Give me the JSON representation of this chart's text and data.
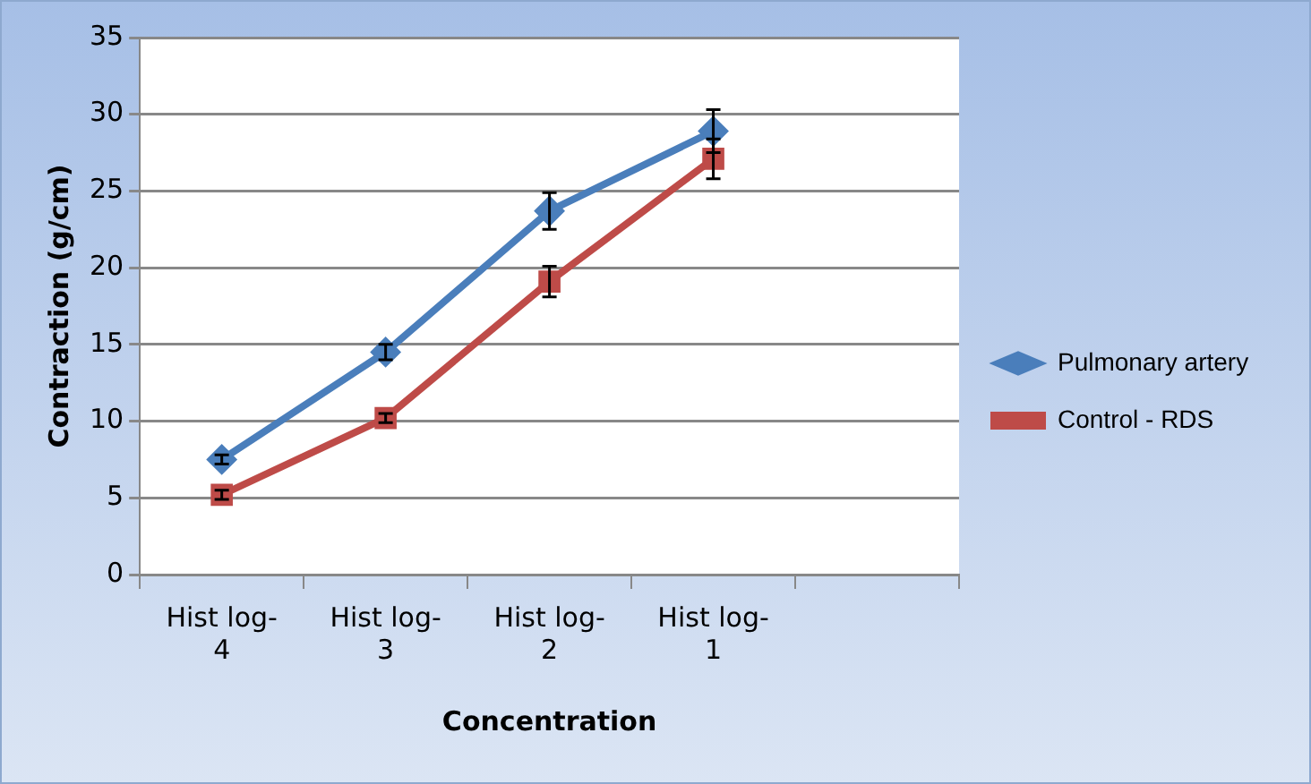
{
  "chart_data": {
    "type": "line",
    "xlabel": "Concentration",
    "ylabel": "Contraction (g/cm)",
    "categories": [
      "Hist log-4",
      "Hist log-3",
      "Hist log-2",
      "Hist log-1",
      null
    ],
    "series": [
      {
        "name": "Pulmonary artery",
        "color": "#4a7ebb",
        "marker": "diamond",
        "values": [
          7.5,
          14.5,
          23.7,
          28.9,
          null
        ],
        "errors": [
          0.3,
          0.5,
          1.2,
          1.4,
          null
        ]
      },
      {
        "name": "Control - RDS",
        "color": "#be4b48",
        "marker": "square",
        "values": [
          5.2,
          10.2,
          19.1,
          27.1,
          null
        ],
        "errors": [
          0.3,
          0.3,
          1,
          1.3,
          null
        ]
      }
    ],
    "ylim": [
      0,
      35
    ],
    "yticks": [
      0,
      5,
      10,
      15,
      20,
      25,
      30,
      35
    ],
    "grid": "y",
    "legend": "right"
  }
}
